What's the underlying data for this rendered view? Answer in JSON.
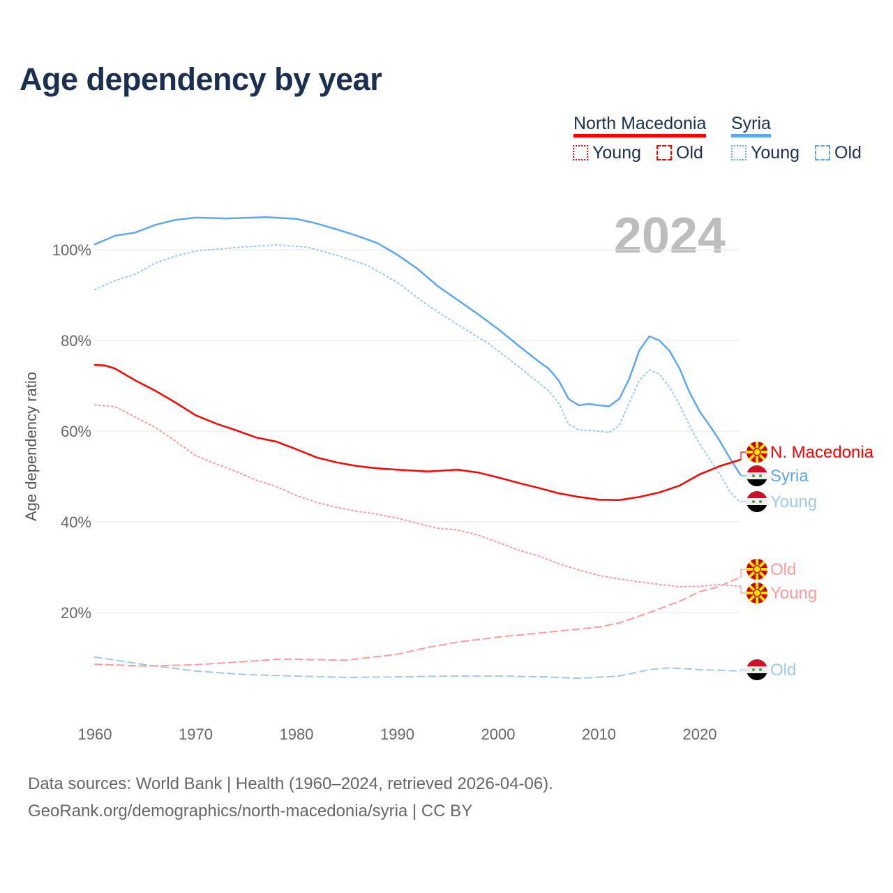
{
  "title": "Age dependency by year",
  "legend": {
    "countries": [
      {
        "name": "North Macedonia",
        "color": "#ff0000"
      },
      {
        "name": "Syria",
        "color": "#5ea7ee"
      }
    ],
    "young_label": "Young",
    "old_label": "Old"
  },
  "footer": {
    "line1": "Data sources: World Bank | Health (1960–2024, retrieved 2026-04-06).",
    "line2": "GeoRank.org/demographics/north-macedonia/syria | CC BY"
  },
  "chart_data": {
    "type": "line",
    "title": "Age dependency by year",
    "year_watermark": "2024",
    "xlabel": "",
    "ylabel": "Age dependency ratio",
    "xlim": [
      1960,
      2024
    ],
    "ylim": [
      0,
      110
    ],
    "xticks": [
      "1960",
      "1970",
      "1980",
      "1990",
      "2000",
      "2010",
      "2020"
    ],
    "yticks": [
      "20%",
      "40%",
      "60%",
      "80%",
      "100%"
    ],
    "grid": true,
    "series": [
      {
        "name": "Syria",
        "end_label": "Syria",
        "flag": "syria",
        "style": "solid",
        "color": "#5ea7ee",
        "x": [
          1960,
          1962,
          1964,
          1966,
          1968,
          1970,
          1973,
          1977,
          1980,
          1982,
          1984,
          1986,
          1988,
          1990,
          1992,
          1994,
          1996,
          1998,
          2000,
          2002,
          2004,
          2005,
          2006,
          2007,
          2008,
          2009,
          2010,
          2011,
          2012,
          2013,
          2014,
          2015,
          2016,
          2017,
          2018,
          2019,
          2020,
          2021,
          2022,
          2023,
          2024
        ],
        "y": [
          101.2,
          103.1,
          103.8,
          105.5,
          106.6,
          107.1,
          106.9,
          107.2,
          106.8,
          105.8,
          104.5,
          103.1,
          101.5,
          98.9,
          95.8,
          92,
          88.9,
          85.8,
          82.5,
          78.9,
          75.4,
          73.8,
          71.2,
          67.1,
          65.7,
          66,
          65.7,
          65.5,
          67.1,
          71.5,
          77.8,
          80.9,
          80,
          77.7,
          73.8,
          68.5,
          64.3,
          61.2,
          57.8,
          54,
          50.5
        ]
      },
      {
        "name": "Syria Young",
        "end_label": "Young",
        "flag": "syria",
        "style": "dotted",
        "color": "#9fc8f3",
        "x": [
          1960,
          1962,
          1964,
          1966,
          1968,
          1970,
          1974,
          1978,
          1981,
          1984,
          1987,
          1990,
          1993,
          1996,
          1999,
          2002,
          2005,
          2006,
          2007,
          2008,
          2010,
          2011,
          2012,
          2013,
          2014,
          2015,
          2016,
          2017,
          2018,
          2019,
          2020,
          2022,
          2023,
          2024
        ],
        "y": [
          91.2,
          93.2,
          94.6,
          97.1,
          98.6,
          99.7,
          100.5,
          101.1,
          100.6,
          98.8,
          96.6,
          92.8,
          87.8,
          83.5,
          79.4,
          74.3,
          68.9,
          66.2,
          61.5,
          60.3,
          60,
          59.7,
          61.2,
          66.2,
          71.2,
          73.5,
          72.6,
          69.7,
          65.8,
          61.2,
          57.1,
          50.5,
          46.6,
          44.3
        ]
      },
      {
        "name": "Syria Old",
        "end_label": "Old",
        "flag": "syria",
        "style": "dashed",
        "color": "#9fc8f3",
        "x": [
          1960,
          1965,
          1970,
          1975,
          1980,
          1985,
          1990,
          1995,
          2000,
          2005,
          2008,
          2012,
          2015,
          2017,
          2020,
          2024
        ],
        "y": [
          10.2,
          8.5,
          7.1,
          6.3,
          6,
          5.7,
          5.8,
          6,
          6,
          5.8,
          5.5,
          6,
          7.4,
          7.8,
          7.4,
          7.1
        ]
      },
      {
        "name": "North Macedonia",
        "end_label": "N. Macedonia",
        "flag": "north-macedonia",
        "style": "solid",
        "color": "#ff0000",
        "x": [
          1960,
          1961,
          1962,
          1964,
          1966,
          1968,
          1970,
          1972,
          1974,
          1976,
          1978,
          1980,
          1982,
          1984,
          1986,
          1988,
          1990,
          1993,
          1996,
          1998,
          2000,
          2002,
          2004,
          2006,
          2008,
          2010,
          2012,
          2014,
          2016,
          2018,
          2020,
          2022,
          2024
        ],
        "y": [
          74.6,
          74.5,
          73.8,
          71.2,
          68.9,
          66.3,
          63.5,
          61.7,
          60.2,
          58.6,
          57.7,
          56,
          54.2,
          53.1,
          52.3,
          51.8,
          51.5,
          51.1,
          51.5,
          50.9,
          49.8,
          48.6,
          47.5,
          46.3,
          45.5,
          44.9,
          44.8,
          45.5,
          46.5,
          48,
          50.5,
          52.3,
          53.7
        ]
      },
      {
        "name": "North Macedonia Young",
        "end_label": "Young",
        "flag": "north-macedonia",
        "style": "dotted",
        "color": "#ff9a9a",
        "x": [
          1960,
          1962,
          1964,
          1966,
          1968,
          1970,
          1972,
          1974,
          1976,
          1978,
          1980,
          1982,
          1984,
          1986,
          1988,
          1990,
          1992,
          1994,
          1996,
          1998,
          2000,
          2002,
          2004,
          2006,
          2008,
          2010,
          2012,
          2014,
          2016,
          2018,
          2020,
          2022,
          2024
        ],
        "y": [
          65.8,
          65.4,
          63.1,
          60.8,
          57.8,
          54.6,
          52.8,
          51.1,
          49.2,
          47.8,
          45.8,
          44.3,
          43.2,
          42.3,
          41.7,
          40.8,
          39.7,
          38.6,
          38.2,
          37.1,
          35.5,
          33.8,
          32.5,
          30.8,
          29.4,
          28.2,
          27.4,
          26.8,
          26.2,
          25.7,
          25.8,
          26.2,
          25.8
        ]
      },
      {
        "name": "North Macedonia Old",
        "end_label": "Old",
        "flag": "north-macedonia",
        "style": "dashed",
        "color": "#ff9a9a",
        "x": [
          1960,
          1965,
          1970,
          1975,
          1978,
          1980,
          1985,
          1990,
          1993,
          1996,
          2000,
          2005,
          2010,
          2012,
          2015,
          2018,
          2020,
          2022,
          2024
        ],
        "y": [
          8.6,
          8.2,
          8.5,
          9.2,
          9.7,
          9.7,
          9.5,
          10.8,
          12.3,
          13.5,
          14.6,
          15.7,
          16.8,
          17.7,
          20,
          22.5,
          24.6,
          25.8,
          27.8
        ]
      }
    ]
  }
}
